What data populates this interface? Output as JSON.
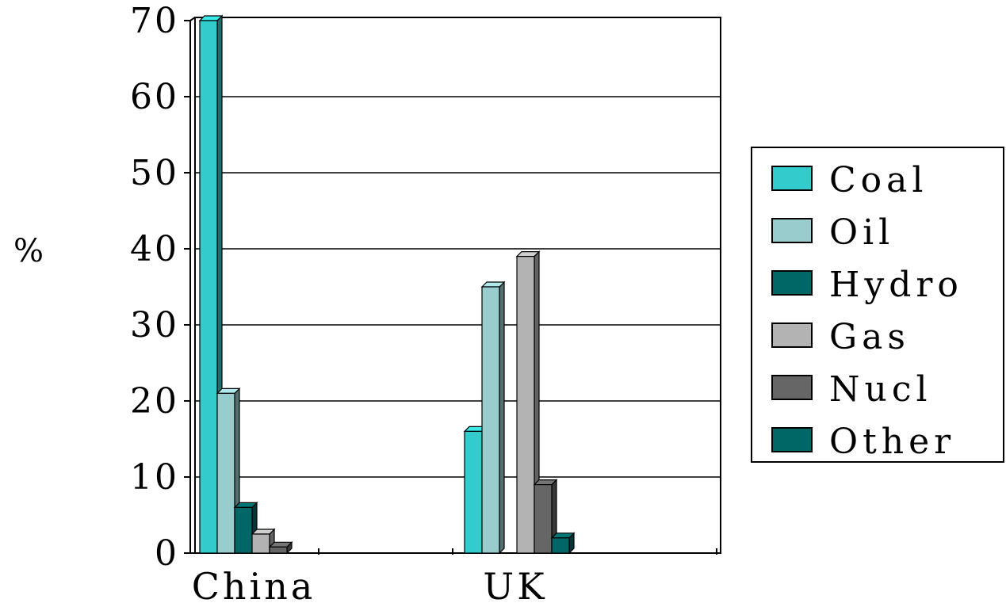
{
  "chart_data": {
    "type": "bar",
    "title": "",
    "xlabel": "",
    "ylabel": "%",
    "categories": [
      "China",
      "UK"
    ],
    "series": [
      {
        "name": "Coal",
        "color": "#33cccc",
        "values": [
          70,
          16
        ]
      },
      {
        "name": "Oil",
        "color": "#99cccc",
        "values": [
          21,
          35
        ]
      },
      {
        "name": "Hydro",
        "color": "#006666",
        "values": [
          6,
          0
        ]
      },
      {
        "name": "Gas",
        "color": "#b3b3b3",
        "values": [
          2.5,
          39
        ]
      },
      {
        "name": "Nucl",
        "color": "#666666",
        "values": [
          0.8,
          9
        ]
      },
      {
        "name": "Other",
        "color": "#006666",
        "values": [
          0,
          2
        ]
      }
    ],
    "ylim": [
      0,
      70
    ],
    "yticks": [
      "0",
      "10",
      "20",
      "30",
      "40",
      "50",
      "60",
      "70"
    ],
    "grid": true,
    "legend": "right",
    "style": "3d-bar"
  }
}
